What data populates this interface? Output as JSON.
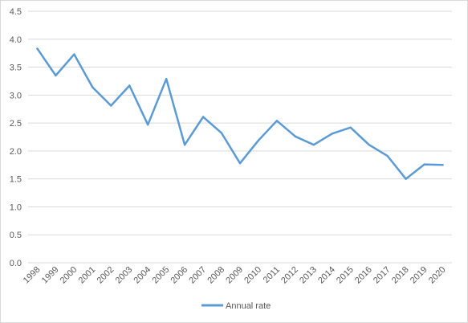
{
  "chart_data": {
    "type": "line",
    "title": "",
    "xlabel": "",
    "ylabel": "",
    "x": [
      "1998",
      "1999",
      "2000",
      "2001",
      "2002",
      "2003",
      "2004",
      "2005",
      "2006",
      "2007",
      "2008",
      "2009",
      "2010",
      "2011",
      "2012",
      "2013",
      "2014",
      "2015",
      "2016",
      "2017",
      "2018",
      "2019",
      "2020"
    ],
    "series": [
      {
        "name": "Annual rate",
        "color": "#5b9bd5",
        "values": [
          3.83,
          3.35,
          3.73,
          3.14,
          2.81,
          3.17,
          2.47,
          3.29,
          2.11,
          2.61,
          2.32,
          1.78,
          2.19,
          2.54,
          2.26,
          2.11,
          2.31,
          2.42,
          2.11,
          1.91,
          1.5,
          1.76,
          1.75
        ]
      }
    ],
    "ylim": [
      0,
      4.5
    ],
    "yticks": [
      "0.0",
      "0.5",
      "1.0",
      "1.5",
      "2.0",
      "2.5",
      "3.0",
      "3.5",
      "4.0",
      "4.5"
    ],
    "grid": true,
    "legend_position": "bottom"
  }
}
